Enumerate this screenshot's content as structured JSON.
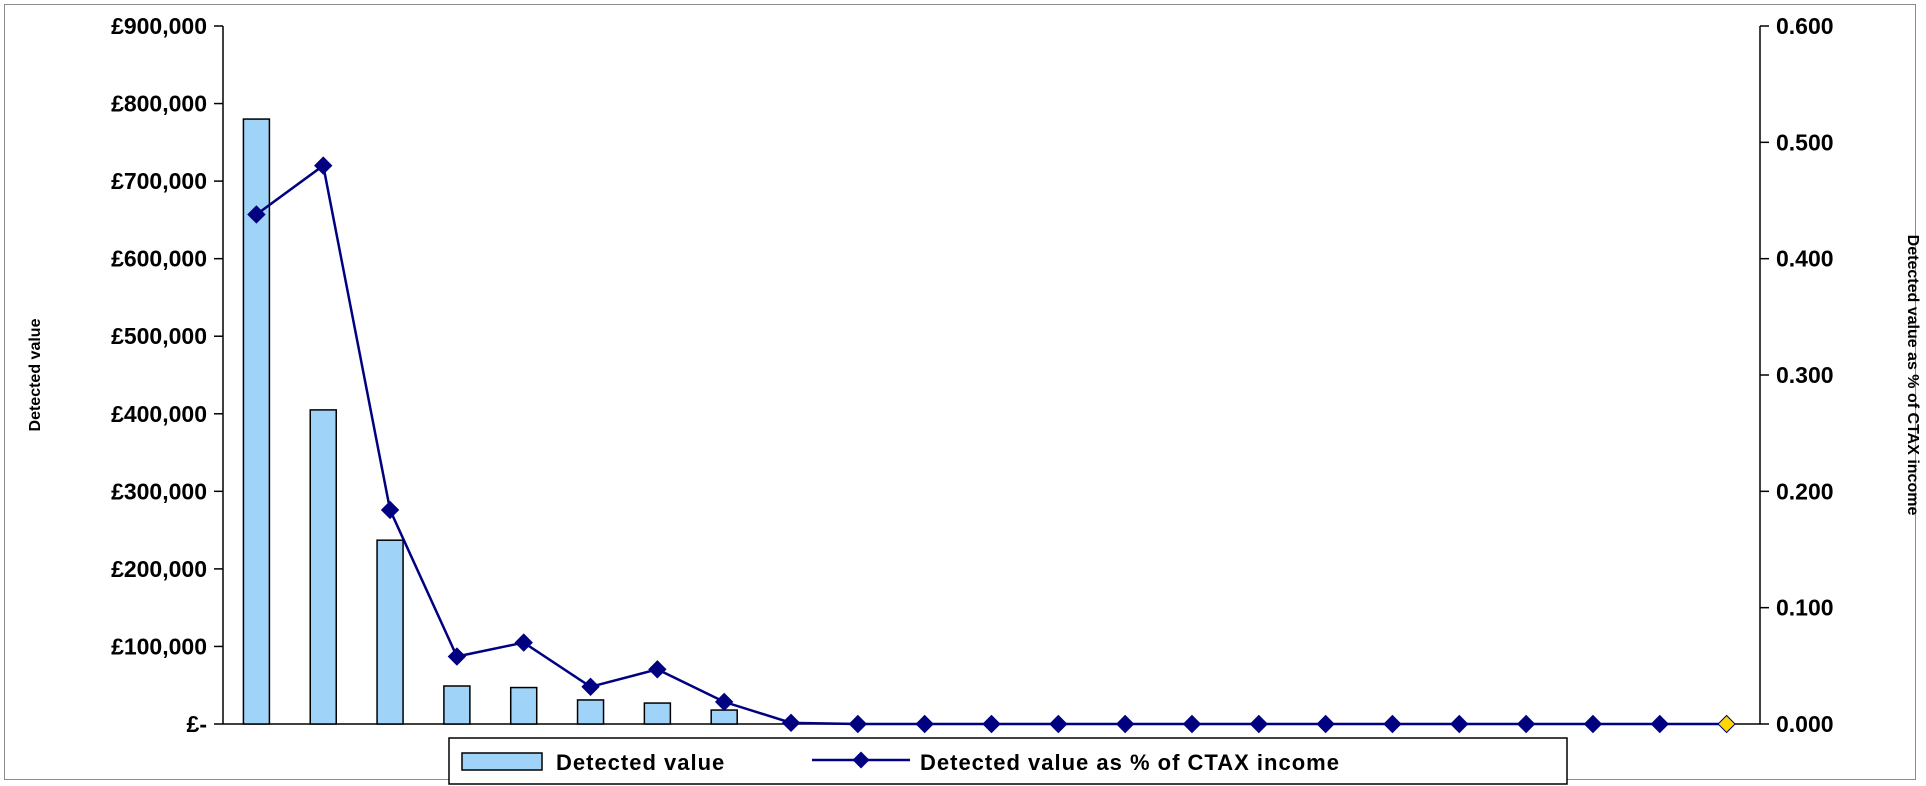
{
  "chart_data": {
    "type": "bar",
    "y_axis_left": {
      "title": "Detected value",
      "ticks": [
        "£-",
        "£100,000",
        "£200,000",
        "£300,000",
        "£400,000",
        "£500,000",
        "£600,000",
        "£700,000",
        "£800,000",
        "£900,000"
      ],
      "range": [
        0,
        900000
      ]
    },
    "y_axis_right": {
      "title": "Detected value as % of CTAX income",
      "ticks": [
        "0.000",
        "0.100",
        "0.200",
        "0.300",
        "0.400",
        "0.500",
        "0.600"
      ],
      "range": [
        0,
        0.6
      ]
    },
    "x_count": 23,
    "series": [
      {
        "name": "Detected value",
        "type": "bar",
        "axis": "left",
        "color": "#9fd3f8",
        "values": [
          780000,
          405000,
          237000,
          49000,
          47000,
          31000,
          27000,
          18000,
          0,
          0,
          0,
          0,
          0,
          0,
          0,
          0,
          0,
          0,
          0,
          0,
          0,
          0,
          0
        ]
      },
      {
        "name": "Detected value as % of CTAX income",
        "type": "line",
        "axis": "right",
        "color": "#000080",
        "values": [
          0.438,
          0.48,
          0.184,
          0.058,
          0.07,
          0.032,
          0.047,
          0.019,
          0.001,
          0,
          0,
          0,
          0,
          0,
          0,
          0,
          0,
          0,
          0,
          0,
          0,
          0,
          0
        ],
        "last_marker_color": "#ffd700"
      }
    ],
    "legend": {
      "placement": "bottom",
      "items": [
        "Detected value",
        "Detected value as % of CTAX income"
      ]
    }
  }
}
